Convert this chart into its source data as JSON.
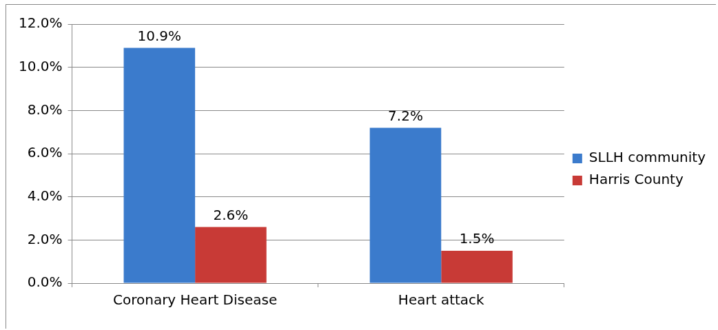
{
  "chart_data": {
    "type": "bar",
    "categories": [
      "Coronary Heart Disease",
      "Heart attack"
    ],
    "series": [
      {
        "name": "SLLH community",
        "color": "#3b7bcc",
        "values": [
          10.9,
          7.2
        ],
        "value_labels": [
          "10.9%",
          "7.2%"
        ]
      },
      {
        "name": "Harris County",
        "color": "#c83a36",
        "values": [
          2.6,
          1.5
        ],
        "value_labels": [
          "2.6%",
          "1.5%"
        ]
      }
    ],
    "ylim": [
      0,
      12
    ],
    "yticks": [
      {
        "value": 0,
        "label": "0.0%"
      },
      {
        "value": 2,
        "label": "2.0%"
      },
      {
        "value": 4,
        "label": "4.0%"
      },
      {
        "value": 6,
        "label": "6.0%"
      },
      {
        "value": 8,
        "label": "8.0%"
      },
      {
        "value": 10,
        "label": "10.0%"
      },
      {
        "value": 12,
        "label": "12.0%"
      }
    ],
    "grid": "y",
    "legend": "right"
  }
}
